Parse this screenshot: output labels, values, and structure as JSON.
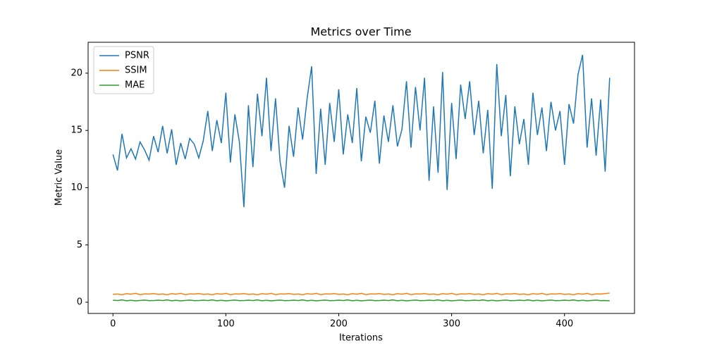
{
  "chart_data": {
    "type": "line",
    "title": "Metrics over Time",
    "x_label": "Iterations",
    "y_label": "Metric Value",
    "x": [
      0,
      4,
      8,
      12,
      16,
      20,
      24,
      28,
      32,
      36,
      40,
      44,
      48,
      52,
      56,
      60,
      64,
      68,
      72,
      76,
      80,
      84,
      88,
      92,
      96,
      100,
      104,
      108,
      112,
      116,
      120,
      124,
      128,
      132,
      136,
      140,
      144,
      148,
      152,
      156,
      160,
      164,
      168,
      172,
      176,
      180,
      184,
      188,
      192,
      196,
      200,
      204,
      208,
      212,
      216,
      220,
      224,
      228,
      232,
      236,
      240,
      244,
      248,
      252,
      256,
      260,
      264,
      268,
      272,
      276,
      280,
      284,
      288,
      292,
      296,
      300,
      304,
      308,
      312,
      316,
      320,
      324,
      328,
      332,
      336,
      340,
      344,
      348,
      352,
      356,
      360,
      364,
      368,
      372,
      376,
      380,
      384,
      388,
      392,
      396,
      400,
      404,
      408,
      412,
      416,
      420,
      424,
      428,
      432,
      436,
      440
    ],
    "series": [
      {
        "name": "PSNR",
        "color": "#1f77b4",
        "values": [
          12.9,
          11.5,
          14.7,
          12.6,
          13.4,
          12.5,
          14.0,
          13.3,
          12.4,
          14.5,
          13.1,
          15.4,
          13.0,
          15.1,
          12.0,
          13.9,
          12.5,
          14.3,
          13.8,
          12.6,
          14.1,
          16.7,
          13.2,
          15.9,
          13.9,
          18.3,
          12.2,
          16.4,
          14.0,
          8.3,
          17.2,
          11.8,
          18.2,
          14.5,
          19.6,
          13.2,
          17.8,
          12.3,
          10.0,
          15.4,
          12.7,
          17.0,
          14.2,
          17.8,
          20.6,
          11.2,
          16.9,
          12.0,
          17.4,
          14.0,
          18.6,
          12.9,
          16.4,
          13.9,
          18.7,
          12.3,
          16.2,
          14.8,
          17.6,
          12.1,
          16.3,
          14.0,
          17.2,
          13.6,
          15.1,
          19.3,
          13.5,
          18.8,
          15.0,
          19.6,
          10.6,
          17.1,
          11.3,
          20.1,
          9.8,
          17.4,
          12.5,
          19.0,
          16.0,
          19.3,
          14.6,
          17.6,
          13.0,
          16.8,
          9.9,
          20.8,
          14.5,
          18.1,
          11.0,
          17.1,
          13.8,
          16.0,
          12.0,
          18.3,
          14.6,
          17.0,
          13.2,
          17.5,
          15.0,
          16.7,
          12.0,
          17.3,
          15.6,
          19.9,
          21.6,
          13.5,
          17.8,
          12.8,
          17.7,
          11.4,
          19.6
        ]
      },
      {
        "name": "SSIM",
        "color": "#ff7f0e",
        "values": [
          0.68,
          0.72,
          0.65,
          0.75,
          0.7,
          0.78,
          0.66,
          0.73,
          0.71,
          0.76,
          0.68,
          0.72,
          0.65,
          0.75,
          0.7,
          0.78,
          0.66,
          0.73,
          0.71,
          0.76,
          0.68,
          0.72,
          0.65,
          0.75,
          0.7,
          0.78,
          0.66,
          0.73,
          0.71,
          0.76,
          0.68,
          0.72,
          0.65,
          0.75,
          0.7,
          0.78,
          0.66,
          0.73,
          0.71,
          0.76,
          0.68,
          0.72,
          0.65,
          0.75,
          0.7,
          0.78,
          0.66,
          0.73,
          0.71,
          0.76,
          0.68,
          0.72,
          0.65,
          0.75,
          0.7,
          0.78,
          0.66,
          0.73,
          0.71,
          0.76,
          0.68,
          0.72,
          0.65,
          0.75,
          0.7,
          0.78,
          0.66,
          0.73,
          0.71,
          0.76,
          0.68,
          0.72,
          0.65,
          0.75,
          0.7,
          0.78,
          0.66,
          0.73,
          0.71,
          0.76,
          0.68,
          0.72,
          0.65,
          0.75,
          0.7,
          0.78,
          0.66,
          0.73,
          0.71,
          0.76,
          0.68,
          0.72,
          0.65,
          0.75,
          0.7,
          0.78,
          0.66,
          0.73,
          0.71,
          0.76,
          0.68,
          0.72,
          0.65,
          0.75,
          0.7,
          0.78,
          0.66,
          0.73,
          0.71,
          0.76,
          0.8
        ]
      },
      {
        "name": "MAE",
        "color": "#2ca02c",
        "values": [
          0.18,
          0.15,
          0.2,
          0.13,
          0.17,
          0.12,
          0.16,
          0.19,
          0.14,
          0.15,
          0.18,
          0.15,
          0.2,
          0.13,
          0.17,
          0.12,
          0.16,
          0.19,
          0.14,
          0.15,
          0.18,
          0.15,
          0.2,
          0.13,
          0.17,
          0.12,
          0.16,
          0.19,
          0.14,
          0.15,
          0.18,
          0.15,
          0.2,
          0.13,
          0.17,
          0.12,
          0.16,
          0.19,
          0.14,
          0.15,
          0.18,
          0.15,
          0.2,
          0.13,
          0.17,
          0.12,
          0.16,
          0.19,
          0.14,
          0.15,
          0.18,
          0.15,
          0.2,
          0.13,
          0.17,
          0.12,
          0.16,
          0.19,
          0.14,
          0.15,
          0.18,
          0.15,
          0.2,
          0.13,
          0.17,
          0.12,
          0.16,
          0.19,
          0.14,
          0.15,
          0.18,
          0.15,
          0.2,
          0.13,
          0.17,
          0.12,
          0.16,
          0.19,
          0.14,
          0.15,
          0.18,
          0.15,
          0.2,
          0.13,
          0.17,
          0.12,
          0.16,
          0.19,
          0.14,
          0.15,
          0.18,
          0.15,
          0.2,
          0.13,
          0.17,
          0.12,
          0.16,
          0.19,
          0.14,
          0.15,
          0.18,
          0.15,
          0.2,
          0.13,
          0.17,
          0.12,
          0.16,
          0.19,
          0.14,
          0.15,
          0.12
        ]
      }
    ],
    "xlim": [
      -22,
      462
    ],
    "ylim": [
      -0.98,
      22.7
    ],
    "xticks": [
      0,
      100,
      200,
      300,
      400
    ],
    "yticks": [
      0,
      5,
      10,
      15,
      20
    ],
    "legend": "upper left"
  }
}
